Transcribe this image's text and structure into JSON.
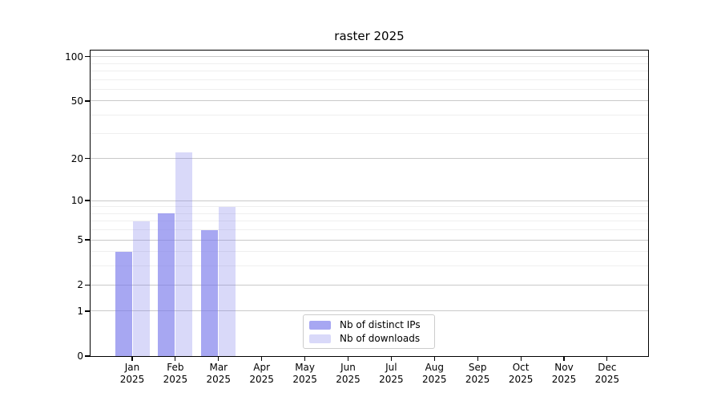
{
  "chart_data": {
    "type": "bar",
    "title": "raster 2025",
    "x_categories": [
      "Jan",
      "Feb",
      "Mar",
      "Apr",
      "May",
      "Jun",
      "Jul",
      "Aug",
      "Sep",
      "Oct",
      "Nov",
      "Dec"
    ],
    "x_sublabel": "2025",
    "series": [
      {
        "name": "Nb of distinct IPs",
        "values": [
          4,
          8,
          6,
          0,
          0,
          0,
          0,
          0,
          0,
          0,
          0,
          0
        ],
        "color": "rgba(120,120,235,0.65)"
      },
      {
        "name": "Nb of downloads",
        "values": [
          7,
          22,
          9,
          0,
          0,
          0,
          0,
          0,
          0,
          0,
          0,
          0
        ],
        "color": "rgba(120,120,235,0.28)"
      }
    ],
    "yscale": "log1p",
    "ylim": [
      0,
      110
    ],
    "y_major_ticks": [
      100,
      50,
      20,
      10,
      5,
      2,
      1,
      0
    ],
    "y_minor_ticks": [
      3,
      4,
      6,
      7,
      8,
      9,
      30,
      40,
      60,
      70,
      80,
      90
    ],
    "grid": true,
    "legend_position": "lower-center"
  },
  "colors": {
    "background": "#ffffff",
    "spine": "#000000",
    "grid_major": "#c9c9c9",
    "grid_minor": "#efefef",
    "text": "#000000",
    "legend_border": "#cccccc",
    "bar_ips": "rgba(120,120,235,0.65)",
    "bar_downloads": "rgba(120,120,235,0.28)"
  }
}
